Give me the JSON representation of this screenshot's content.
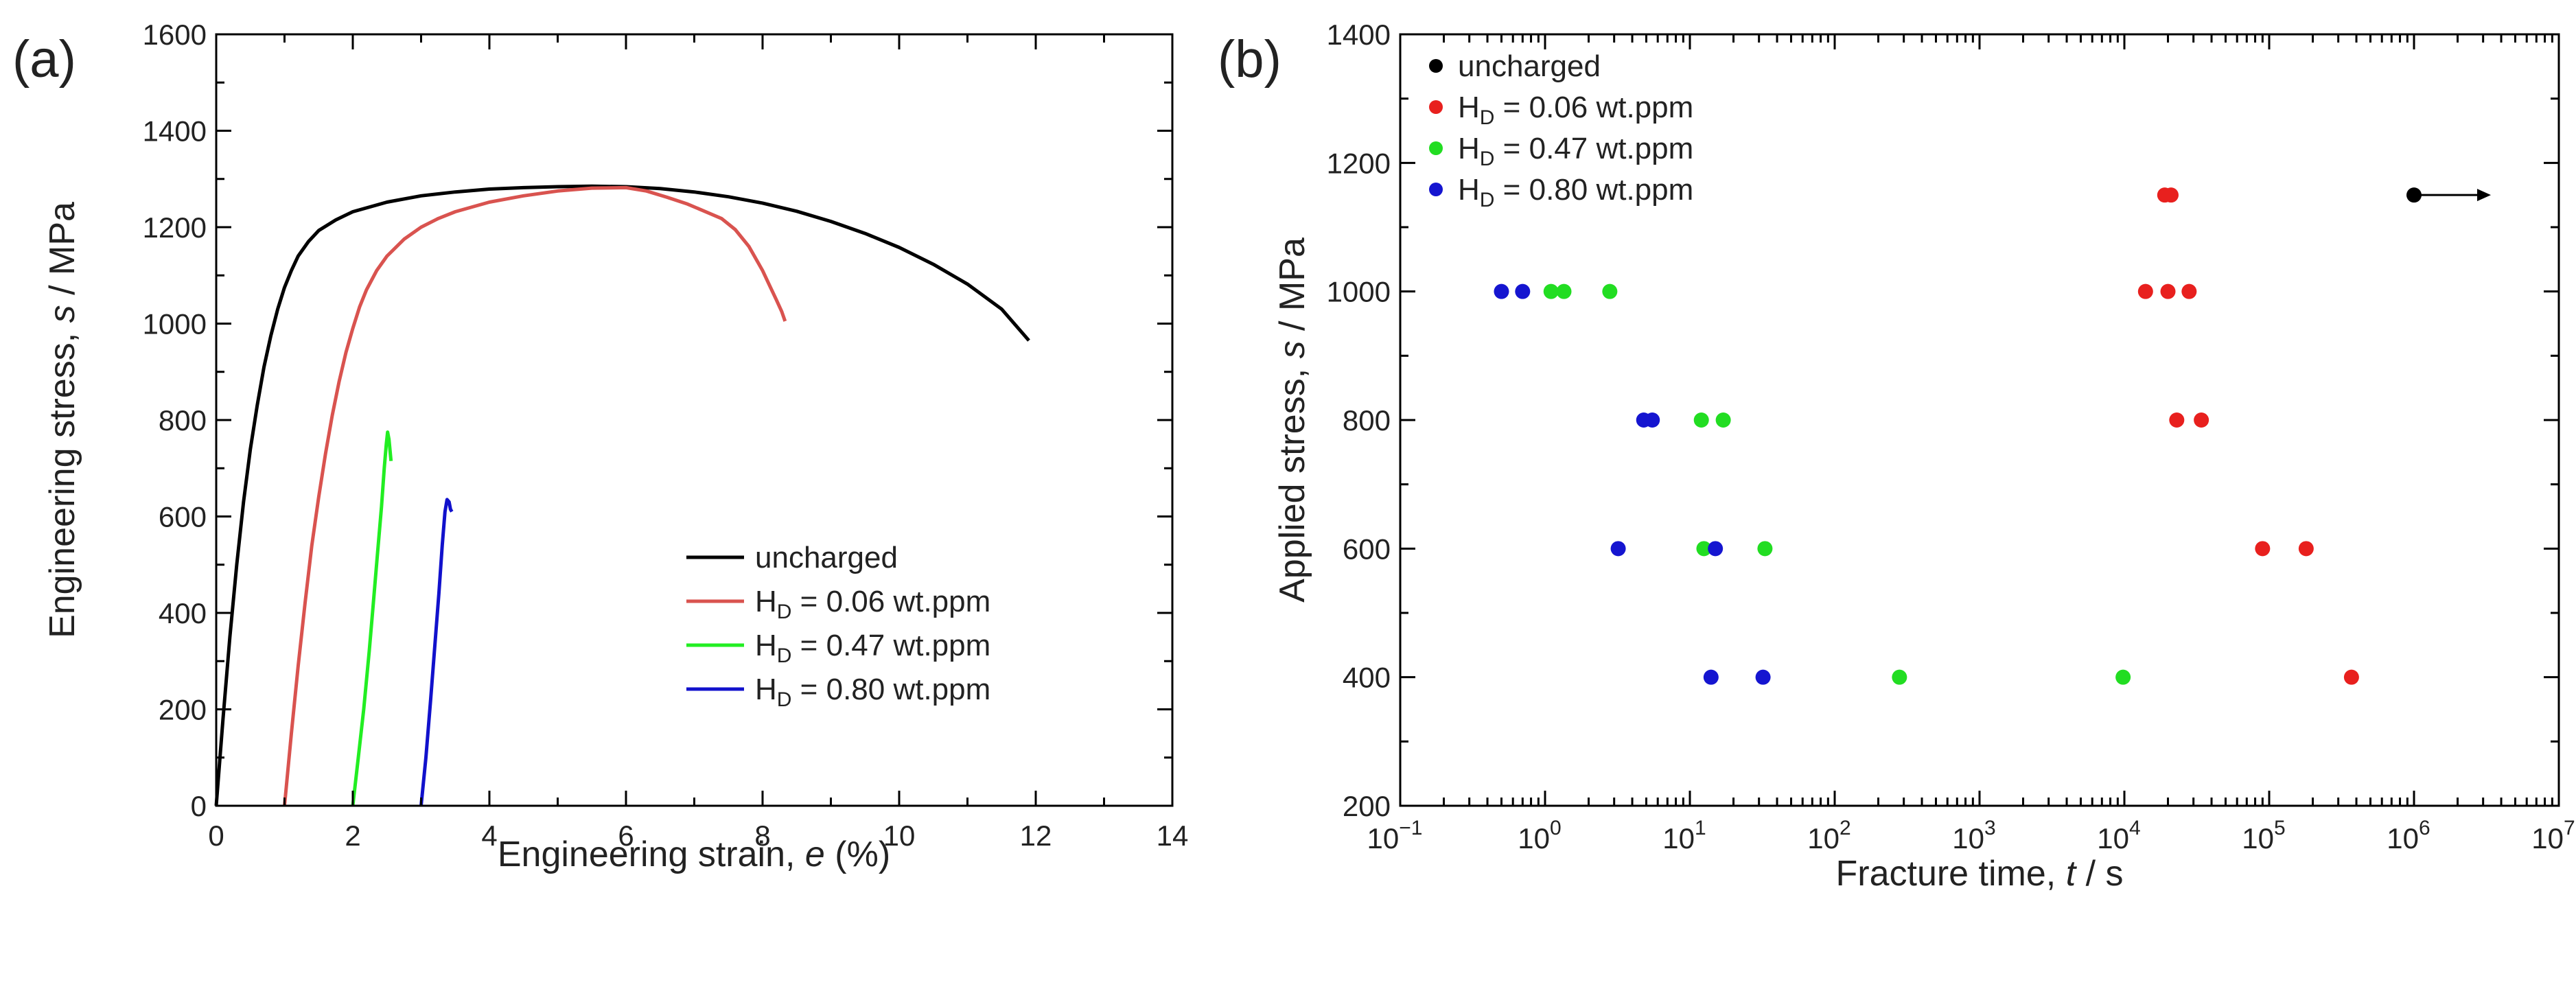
{
  "chart_data": [
    {
      "type": "line",
      "panel_label": "(a)",
      "xlabel_prefix": "Engineering strain, ",
      "xlabel_symbol": "e",
      "xlabel_suffix": " (%)",
      "ylabel_prefix": "Engineering stress, ",
      "ylabel_symbol": "s",
      "ylabel_suffix": " / MPa",
      "xlim": [
        0,
        14
      ],
      "ylim": [
        0,
        1600
      ],
      "xticks": [
        0,
        2,
        4,
        6,
        8,
        10,
        12,
        14
      ],
      "yticks": [
        0,
        200,
        400,
        600,
        800,
        1000,
        1200,
        1400,
        1600
      ],
      "xtick_labels": [
        "0",
        "2",
        "4",
        "6",
        "8",
        "10",
        "12",
        "14"
      ],
      "ytick_labels": [
        "0",
        "200",
        "400",
        "600",
        "800",
        "1000",
        "1200",
        "1400",
        "1600"
      ],
      "legend_position": "lower-right",
      "series": [
        {
          "name": "uncharged",
          "legend_main": "uncharged",
          "legend_sub": "",
          "legend_tail": "",
          "color": "#000000",
          "points": [
            [
              0,
              0
            ],
            [
              0.1,
              180
            ],
            [
              0.2,
              350
            ],
            [
              0.3,
              500
            ],
            [
              0.4,
              630
            ],
            [
              0.5,
              740
            ],
            [
              0.6,
              830
            ],
            [
              0.7,
              910
            ],
            [
              0.8,
              975
            ],
            [
              0.9,
              1030
            ],
            [
              1.0,
              1075
            ],
            [
              1.1,
              1110
            ],
            [
              1.2,
              1140
            ],
            [
              1.35,
              1170
            ],
            [
              1.5,
              1193
            ],
            [
              1.75,
              1215
            ],
            [
              2.0,
              1232
            ],
            [
              2.5,
              1252
            ],
            [
              3.0,
              1265
            ],
            [
              3.5,
              1273
            ],
            [
              4.0,
              1279
            ],
            [
              4.5,
              1282
            ],
            [
              5.0,
              1284
            ],
            [
              5.5,
              1285
            ],
            [
              6.0,
              1284
            ],
            [
              6.5,
              1280
            ],
            [
              7.0,
              1273
            ],
            [
              7.5,
              1263
            ],
            [
              8.0,
              1250
            ],
            [
              8.5,
              1233
            ],
            [
              9.0,
              1212
            ],
            [
              9.5,
              1187
            ],
            [
              10.0,
              1158
            ],
            [
              10.5,
              1123
            ],
            [
              11.0,
              1082
            ],
            [
              11.5,
              1030
            ],
            [
              11.9,
              965
            ]
          ]
        },
        {
          "name": "HD = 0.06 wt.ppm",
          "legend_main": "H",
          "legend_sub": "D",
          "legend_tail": " = 0.06 wt.ppm",
          "color": "#d9534f",
          "points": [
            [
              1.0,
              0
            ],
            [
              1.1,
              150
            ],
            [
              1.2,
              290
            ],
            [
              1.3,
              420
            ],
            [
              1.4,
              540
            ],
            [
              1.5,
              640
            ],
            [
              1.6,
              730
            ],
            [
              1.7,
              810
            ],
            [
              1.8,
              880
            ],
            [
              1.9,
              940
            ],
            [
              2.0,
              990
            ],
            [
              2.1,
              1035
            ],
            [
              2.2,
              1070
            ],
            [
              2.35,
              1110
            ],
            [
              2.5,
              1140
            ],
            [
              2.75,
              1175
            ],
            [
              3.0,
              1200
            ],
            [
              3.25,
              1218
            ],
            [
              3.5,
              1232
            ],
            [
              4.0,
              1252
            ],
            [
              4.5,
              1265
            ],
            [
              5.0,
              1275
            ],
            [
              5.5,
              1281
            ],
            [
              6.0,
              1282
            ],
            [
              6.3,
              1275
            ],
            [
              6.6,
              1262
            ],
            [
              6.9,
              1248
            ],
            [
              7.2,
              1230
            ],
            [
              7.4,
              1218
            ],
            [
              7.6,
              1195
            ],
            [
              7.8,
              1160
            ],
            [
              8.0,
              1110
            ],
            [
              8.1,
              1080
            ],
            [
              8.2,
              1050
            ],
            [
              8.28,
              1025
            ],
            [
              8.33,
              1005
            ]
          ]
        },
        {
          "name": "HD = 0.47 wt.ppm",
          "legend_main": "H",
          "legend_sub": "D",
          "legend_tail": " = 0.47 wt.ppm",
          "color": "#22ee22",
          "points": [
            [
              2.0,
              0
            ],
            [
              2.08,
              100
            ],
            [
              2.16,
              200
            ],
            [
              2.24,
              320
            ],
            [
              2.3,
              420
            ],
            [
              2.36,
              520
            ],
            [
              2.42,
              620
            ],
            [
              2.46,
              700
            ],
            [
              2.49,
              750
            ],
            [
              2.51,
              775
            ],
            [
              2.53,
              760
            ],
            [
              2.55,
              730
            ],
            [
              2.56,
              715
            ]
          ]
        },
        {
          "name": "HD = 0.80 wt.ppm",
          "legend_main": "H",
          "legend_sub": "D",
          "legend_tail": " = 0.80 wt.ppm",
          "color": "#1111cc",
          "points": [
            [
              3.0,
              0
            ],
            [
              3.07,
              100
            ],
            [
              3.14,
              220
            ],
            [
              3.2,
              330
            ],
            [
              3.26,
              440
            ],
            [
              3.31,
              540
            ],
            [
              3.35,
              610
            ],
            [
              3.38,
              635
            ],
            [
              3.41,
              630
            ],
            [
              3.43,
              615
            ],
            [
              3.45,
              610
            ]
          ]
        }
      ]
    },
    {
      "type": "scatter",
      "panel_label": "(b)",
      "xscale": "log",
      "xlabel_prefix": "Fracture time, ",
      "xlabel_symbol": "t",
      "xlabel_suffix": " / s",
      "ylabel_prefix": "Applied  stress, ",
      "ylabel_symbol": "s",
      "ylabel_suffix": " / MPa",
      "xlim": [
        0.1,
        10000000
      ],
      "ylim": [
        200,
        1400
      ],
      "xtick_exponents": [
        -1,
        0,
        1,
        2,
        3,
        4,
        5,
        6,
        7
      ],
      "xtick_base": "10",
      "xtick_exponent_labels": [
        "−1",
        "0",
        "1",
        "2",
        "3",
        "4",
        "5",
        "6",
        "7"
      ],
      "yticks": [
        200,
        400,
        600,
        800,
        1000,
        1200,
        1400
      ],
      "ytick_labels": [
        "200",
        "400",
        "600",
        "800",
        "1000",
        "1200",
        "1400"
      ],
      "legend_position": "top-left",
      "series": [
        {
          "name": "uncharged",
          "legend_main": "uncharged",
          "legend_sub": "",
          "legend_tail": "",
          "color": "#000000",
          "points": [
            [
              1000000,
              1150
            ]
          ],
          "runout_arrow": true
        },
        {
          "name": "HD = 0.06 wt.ppm",
          "legend_main": "H",
          "legend_sub": "D",
          "legend_tail": " = 0.06 wt.ppm",
          "color": "#e8201e",
          "points": [
            [
              19000,
              1150
            ],
            [
              21000,
              1150
            ],
            [
              14000,
              1000
            ],
            [
              20000,
              1000
            ],
            [
              28000,
              1000
            ],
            [
              23000,
              800
            ],
            [
              34000,
              800
            ],
            [
              90000,
              600
            ],
            [
              180000,
              600
            ],
            [
              370000,
              400
            ]
          ]
        },
        {
          "name": "HD = 0.47 wt.ppm",
          "legend_main": "H",
          "legend_sub": "D",
          "legend_tail": " = 0.47 wt.ppm",
          "color": "#22dd22",
          "points": [
            [
              1.1,
              1000
            ],
            [
              1.35,
              1000
            ],
            [
              2.8,
              1000
            ],
            [
              12,
              800
            ],
            [
              17,
              800
            ],
            [
              12.5,
              600
            ],
            [
              33,
              600
            ],
            [
              280,
              400
            ],
            [
              9800,
              400
            ]
          ]
        },
        {
          "name": "HD = 0.80 wt.ppm",
          "legend_main": "H",
          "legend_sub": "D",
          "legend_tail": " = 0.80 wt.ppm",
          "color": "#1515d0",
          "points": [
            [
              0.5,
              1000
            ],
            [
              0.7,
              1000
            ],
            [
              4.8,
              800
            ],
            [
              5.5,
              800
            ],
            [
              3.2,
              600
            ],
            [
              15,
              600
            ],
            [
              14,
              400
            ],
            [
              32,
              400
            ]
          ]
        }
      ]
    }
  ]
}
